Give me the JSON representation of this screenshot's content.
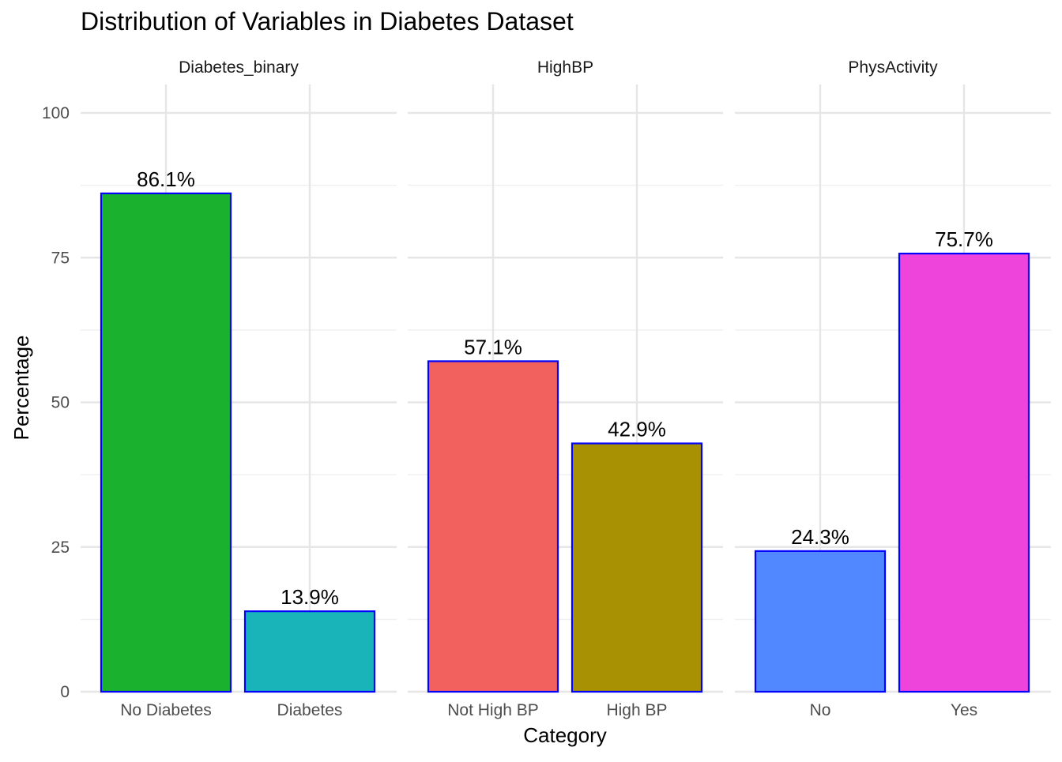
{
  "chart_data": {
    "type": "bar",
    "title": "Distribution of Variables in Diabetes Dataset",
    "xlabel": "Category",
    "ylabel": "Percentage",
    "ylim": [
      0,
      100
    ],
    "yticks": [
      0,
      25,
      50,
      75,
      100
    ],
    "grid": true,
    "legend": "none",
    "bar_outline_color": "#0000FF",
    "panels": [
      {
        "name": "Diabetes_binary",
        "categories": [
          "No Diabetes",
          "Diabetes"
        ],
        "values": [
          86.1,
          13.9
        ],
        "labels": [
          "86.1%",
          "13.9%"
        ],
        "colors": [
          "#1AB12E",
          "#19B4B9"
        ]
      },
      {
        "name": "HighBP",
        "categories": [
          "Not High BP",
          "High BP"
        ],
        "values": [
          57.1,
          42.9
        ],
        "labels": [
          "57.1%",
          "42.9%"
        ],
        "colors": [
          "#F2615E",
          "#A89203"
        ]
      },
      {
        "name": "PhysActivity",
        "categories": [
          "No",
          "Yes"
        ],
        "values": [
          24.3,
          75.7
        ],
        "labels": [
          "24.3%",
          "75.7%"
        ],
        "colors": [
          "#5288FF",
          "#EF44DC"
        ]
      }
    ]
  }
}
